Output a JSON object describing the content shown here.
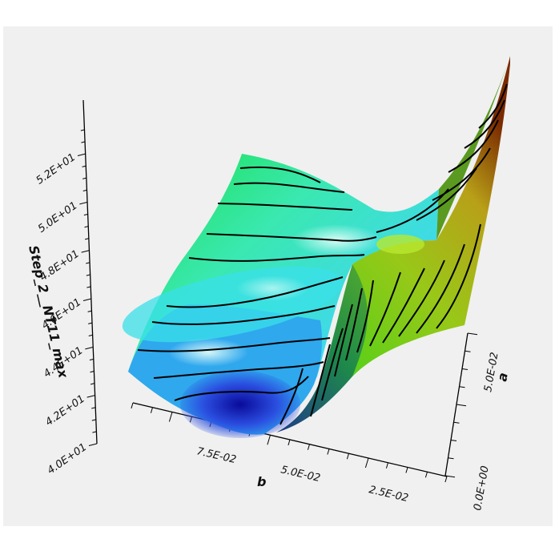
{
  "chart_data": {
    "type": "surface3d",
    "zlabel": "Step_2__NT11_max",
    "xlabel": "b",
    "ylabel": "a",
    "z_ticks": [
      "4.0E+01",
      "4.2E+01",
      "4.4E+01",
      "4.6E+01",
      "4.8E+01",
      "5.0E+01",
      "5.2E+01"
    ],
    "x_ticks": [
      "7.5E-02",
      "5.0E-02",
      "2.5E-02"
    ],
    "y_ticks": [
      "0.0E+00",
      "5.0E-02"
    ],
    "colormap": [
      "#1a1ab0",
      "#30c8f0",
      "#38e8e0",
      "#30e060",
      "#90c820",
      "#a06a10",
      "#7a2200"
    ],
    "contours": "black",
    "surface_peak": "front-right corner (b small, a large)"
  }
}
